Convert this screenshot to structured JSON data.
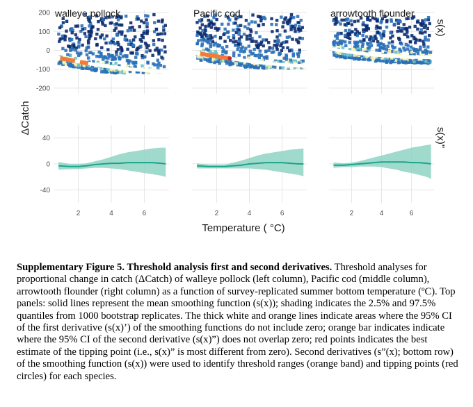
{
  "chart_data": {
    "type": "faceted-hexbin-and-line",
    "xlabel": "Temperature ( °C)",
    "ylabel": "ΔCatch",
    "right_labels": [
      "s(x)",
      "s(x)\""
    ],
    "facets": [
      "walleye pollock",
      "Pacific cod",
      "arrowtooth flounder"
    ],
    "x_ticks": [
      "2",
      "4",
      "6"
    ],
    "x_tick_values": [
      2,
      4,
      6
    ],
    "xlim": [
      0.5,
      7.5
    ],
    "top_row": {
      "y_ticks": [
        "200",
        "100",
        "0",
        "-100",
        "-200"
      ],
      "y_tick_values": [
        200,
        100,
        0,
        -100,
        -200
      ],
      "ylim": [
        -230,
        215
      ],
      "panels": [
        {
          "facet": "walleye pollock",
          "smooth_x": [
            0.8,
            2.0,
            3.0,
            4.0,
            5.0,
            6.0,
            7.3
          ],
          "smooth_y": [
            -40,
            -60,
            -75,
            -88,
            -98,
            -106,
            -113
          ],
          "white_segment_x": [
            0.8,
            7.3
          ],
          "orange_bar_x": [
            [
              0.9,
              1.8
            ],
            [
              2.1,
              2.6
            ]
          ],
          "tipping_point_x": null,
          "hex_y_range": [
            -120,
            190
          ]
        },
        {
          "facet": "Pacific cod",
          "smooth_x": [
            0.8,
            2.0,
            3.0,
            4.0,
            5.0,
            6.0,
            7.3
          ],
          "smooth_y": [
            -15,
            -32,
            -45,
            -58,
            -68,
            -76,
            -82
          ],
          "white_segment_x": [
            0.8,
            7.3
          ],
          "orange_bar_x": [
            [
              1.0,
              2.8
            ]
          ],
          "tipping_point_x": 2.8,
          "hex_y_range": [
            -95,
            190
          ]
        },
        {
          "facet": "arrowtooth flounder",
          "smooth_x": [
            0.8,
            2.0,
            3.0,
            4.0,
            5.0,
            6.0,
            7.3
          ],
          "smooth_y": [
            5,
            -10,
            -20,
            -27,
            -32,
            -35,
            -38
          ],
          "white_segment_x": [
            0.8,
            7.3
          ],
          "orange_bar_x": [],
          "tipping_point_x": null,
          "hex_y_range": [
            -85,
            180
          ]
        }
      ]
    },
    "bottom_row": {
      "y_ticks": [
        "40",
        "0",
        "-40"
      ],
      "y_tick_values": [
        40,
        0,
        -40
      ],
      "ylim": [
        -60,
        60
      ],
      "panels": [
        {
          "facet": "walleye pollock",
          "x": [
            0.8,
            1.5,
            2.0,
            2.5,
            3.0,
            3.5,
            4.0,
            4.5,
            5.0,
            5.5,
            6.0,
            6.5,
            7.0,
            7.3
          ],
          "mean": [
            -3,
            -4,
            -4,
            -3,
            -1,
            0,
            1,
            1,
            2,
            2,
            2,
            2,
            1,
            0
          ],
          "lower": [
            -9,
            -8,
            -8,
            -7,
            -6,
            -6,
            -7,
            -8,
            -10,
            -12,
            -14,
            -16,
            -18,
            -20
          ],
          "upper": [
            3,
            0,
            0,
            1,
            4,
            7,
            11,
            15,
            18,
            20,
            22,
            24,
            25,
            25
          ]
        },
        {
          "facet": "Pacific cod",
          "x": [
            0.8,
            1.5,
            2.0,
            2.5,
            3.0,
            3.5,
            4.0,
            4.5,
            5.0,
            5.5,
            6.0,
            6.5,
            7.0,
            7.3
          ],
          "mean": [
            -3,
            -4,
            -4,
            -4,
            -3,
            -2,
            0,
            1,
            2,
            2,
            2,
            1,
            0,
            0
          ],
          "lower": [
            -7,
            -7,
            -7,
            -7,
            -7,
            -7,
            -7,
            -8,
            -9,
            -11,
            -13,
            -15,
            -17,
            -19
          ],
          "upper": [
            1,
            -1,
            -1,
            -1,
            2,
            5,
            9,
            13,
            16,
            18,
            20,
            22,
            23,
            24
          ]
        },
        {
          "facet": "arrowtooth flounder",
          "x": [
            0.8,
            1.5,
            2.0,
            2.5,
            3.0,
            3.5,
            4.0,
            4.5,
            5.0,
            5.5,
            6.0,
            6.5,
            7.0,
            7.3
          ],
          "mean": [
            -2,
            -2,
            -1,
            0,
            1,
            2,
            3,
            3,
            3,
            3,
            2,
            2,
            1,
            0
          ],
          "lower": [
            -6,
            -5,
            -5,
            -4,
            -4,
            -4,
            -5,
            -7,
            -9,
            -12,
            -14,
            -17,
            -20,
            -23
          ],
          "upper": [
            2,
            1,
            2,
            4,
            7,
            10,
            13,
            16,
            19,
            22,
            25,
            27,
            29,
            30
          ]
        }
      ]
    },
    "colors": {
      "hex_dark": "#0c2a6e",
      "hex_mid": "#2a70b8",
      "hex_light": "#6cc0c8",
      "hex_pale": "#f6f2a8",
      "smooth_line": "#ffffff",
      "orange_bar": "#f07b3a",
      "tipping_point": "#c62828",
      "teal_line": "#1aa58a",
      "teal_ribbon": "#8fd3c3"
    }
  },
  "caption": {
    "bold": "Supplementary Figure 5. Threshold analysis first and second derivatives.",
    "text": "Threshold analyses for proportional change in catch (ΔCatch) of walleye pollock (left column), Pacific cod (middle column), arrowtooth flounder (right column) as a function of survey-replicated summer bottom temperature (ºC). Top panels: solid lines represent the mean smoothing function (s(x)); shading indicates the 2.5% and 97.5% quantiles from 1000 bootstrap replicates. The thick white and orange lines indicate areas where the 95% CI of the first derivative (s(x)’) of the smoothing functions do not include zero; orange bar indicates indicate where the 95% CI of the second derivative (s(x)”) does not overlap zero; red points indicates the best estimate of the tipping point (i.e., s(x)” is most different from zero). Second derivatives (s”(x); bottom row) of the smoothing function (s(x)) were used to identify threshold ranges (orange band) and tipping points (red circles) for each species."
  }
}
